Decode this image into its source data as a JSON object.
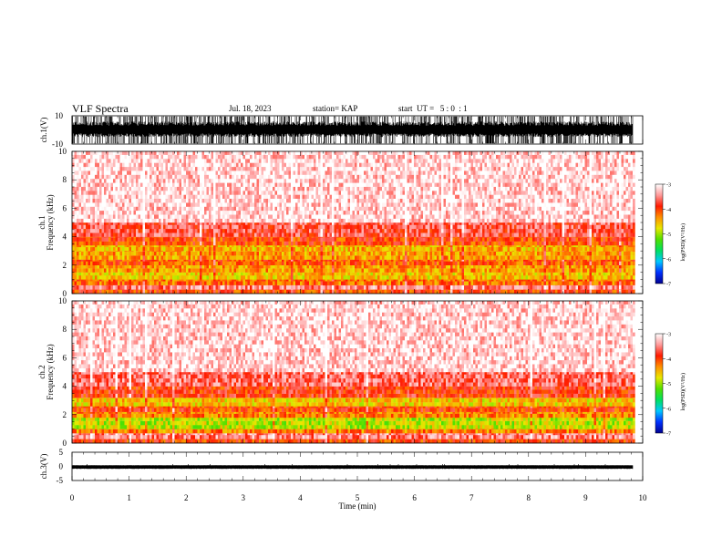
{
  "header": {
    "title": "VLF Spectra",
    "date": "Jul. 18, 2023",
    "station": "station= KAP",
    "start": "start  UT =   5 : 0  : 1"
  },
  "colors": {
    "spectrum_stops": [
      "#000090",
      "#0030ff",
      "#00c8ff",
      "#00e060",
      "#50e000",
      "#e8e800",
      "#ff9000",
      "#ff1a00",
      "#ff9a9a",
      "#ffffff"
    ],
    "waveform": "#000000"
  },
  "chart_data": [
    {
      "type": "line",
      "name": "ch1-waveform",
      "ylabel": "ch.1(V)",
      "ylim": [
        -10,
        10
      ],
      "yticklabels": [
        "10",
        "-10"
      ],
      "x_range_min": [
        0,
        9.83
      ],
      "envelope": {
        "lower": -9.5,
        "upper": 9.5,
        "typical_lower": -5,
        "typical_upper": 6
      }
    },
    {
      "type": "heatmap",
      "name": "ch1-spectrogram",
      "ylabel_lines": [
        "ch.1",
        "Frequency  (kHz)"
      ],
      "ylim": [
        0,
        10
      ],
      "yticks": [
        0,
        2,
        4,
        6,
        8,
        10
      ],
      "x_range_min": [
        0,
        9.83
      ],
      "colorbar": {
        "label": "log(PSD)(V²/Hz)",
        "range": [
          -7,
          -3
        ],
        "ticks": [
          -3,
          -4,
          -5,
          -6,
          -7
        ]
      },
      "bands_khz_to_logpsd": [
        [
          0.0,
          0.3,
          -4.0
        ],
        [
          0.3,
          0.6,
          -3.5
        ],
        [
          0.6,
          1.0,
          -4.2
        ],
        [
          1.0,
          1.5,
          -4.6
        ],
        [
          1.5,
          2.0,
          -4.4
        ],
        [
          2.0,
          2.4,
          -4.1
        ],
        [
          2.4,
          3.0,
          -4.4
        ],
        [
          3.0,
          3.4,
          -4.5
        ],
        [
          3.4,
          4.0,
          -4.0
        ],
        [
          4.0,
          5.0,
          -3.7
        ],
        [
          5.0,
          10.0,
          -3.2
        ]
      ]
    },
    {
      "type": "heatmap",
      "name": "ch2-spectrogram",
      "ylabel_lines": [
        "ch.2",
        "Frequency  (kHz)"
      ],
      "ylim": [
        0,
        10
      ],
      "yticks": [
        0,
        2,
        4,
        6,
        8,
        10
      ],
      "x_range_min": [
        0,
        9.83
      ],
      "colorbar": {
        "label": "log(PSD)(V²/Hz)",
        "range": [
          -7,
          -3
        ],
        "ticks": [
          -3,
          -4,
          -5,
          -6,
          -7
        ]
      },
      "bands_khz_to_logpsd": [
        [
          0.0,
          0.3,
          -4.0
        ],
        [
          0.3,
          0.7,
          -3.5
        ],
        [
          0.7,
          1.0,
          -4.3
        ],
        [
          1.0,
          1.8,
          -4.9
        ],
        [
          1.8,
          2.2,
          -4.3
        ],
        [
          2.2,
          2.6,
          -4.0
        ],
        [
          2.6,
          3.2,
          -4.6
        ],
        [
          3.2,
          4.0,
          -3.9
        ],
        [
          4.0,
          5.0,
          -3.6
        ],
        [
          5.0,
          10.0,
          -3.2
        ]
      ]
    },
    {
      "type": "line",
      "name": "ch3-waveform",
      "ylabel": "ch.3(V)",
      "ylim": [
        -5,
        5
      ],
      "yticklabels": [
        "5",
        "0",
        "-5"
      ],
      "x_range_min": [
        0,
        9.83
      ],
      "envelope": {
        "lower": -0.9,
        "upper": 0.4
      }
    }
  ],
  "x_axis": {
    "label": "Time  (min)",
    "xlim": [
      0,
      10
    ],
    "ticks": [
      "0",
      "1",
      "2",
      "3",
      "4",
      "5",
      "6",
      "7",
      "8",
      "9",
      "10"
    ]
  }
}
